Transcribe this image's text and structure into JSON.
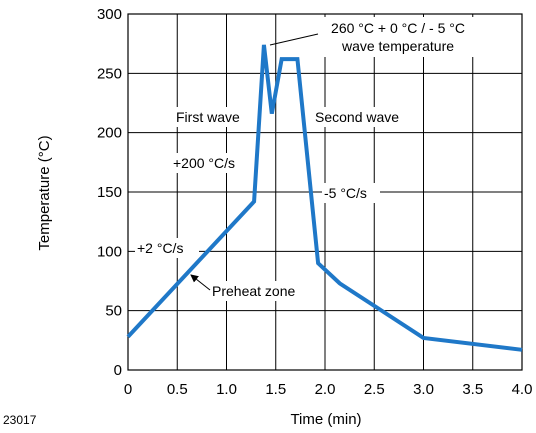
{
  "chart_data": {
    "type": "line",
    "title": "",
    "xlabel": "Time (min)",
    "ylabel": "Temperature (°C)",
    "xlim": [
      0,
      4.0
    ],
    "ylim": [
      0,
      300
    ],
    "xticks": [
      0,
      0.5,
      1.0,
      1.5,
      2.0,
      2.5,
      3.0,
      3.5,
      4.0
    ],
    "xtick_labels": [
      "0",
      "0.5",
      "1.0",
      "1.5",
      "2.0",
      "2.5",
      "3.0",
      "3.5",
      "4.0"
    ],
    "yticks": [
      0,
      50,
      100,
      150,
      200,
      250,
      300
    ],
    "ytick_labels": [
      "0",
      "50",
      "100",
      "150",
      "200",
      "250",
      "300"
    ],
    "grid": true,
    "legend": "none",
    "line_color": "#1f78c8",
    "series": [
      {
        "x": [
          0,
          1.28,
          1.38,
          1.46,
          1.56,
          1.72,
          1.93,
          2.15,
          3.0,
          4.0
        ],
        "y": [
          28,
          142,
          274,
          216,
          262,
          262,
          90,
          73,
          27,
          17
        ]
      }
    ],
    "annotations": [
      {
        "id": "peak",
        "lines": [
          "260 °C + 0 °C / - 5 °C",
          "wave temperature"
        ]
      },
      {
        "id": "first-wave",
        "text": "First wave"
      },
      {
        "id": "second-wave",
        "text": "Second wave"
      },
      {
        "id": "rate-200",
        "text": "+200 °C/s"
      },
      {
        "id": "rate-minus5",
        "text": "-5 °C/s"
      },
      {
        "id": "rate-2",
        "text": "+2 °C/s"
      },
      {
        "id": "preheat",
        "text": "Preheat zone"
      }
    ]
  },
  "figure_id": "23017"
}
